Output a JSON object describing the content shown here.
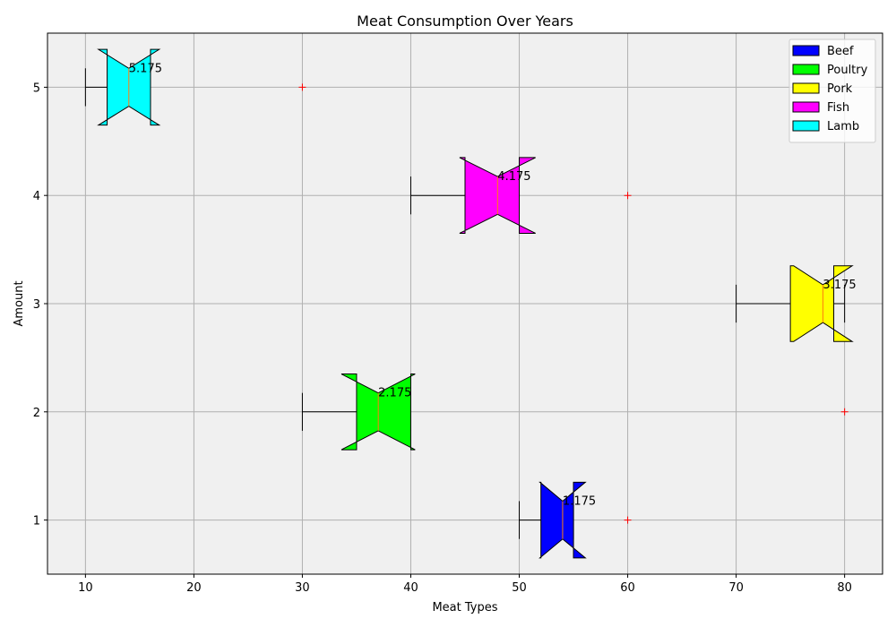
{
  "chart_data": {
    "type": "boxplot",
    "orientation": "horizontal",
    "notched": true,
    "title": "Meat Consumption Over Years",
    "x_label": "Meat Types",
    "y_label": "Amount",
    "xlim": [
      6.5,
      83.5
    ],
    "xticks": [
      10,
      20,
      30,
      40,
      50,
      60,
      70,
      80
    ],
    "ylim": [
      0.5,
      5.5
    ],
    "yticks": [
      1,
      2,
      3,
      4,
      5
    ],
    "grid": true,
    "legend_position": "upper right",
    "background": "#f0f0f0",
    "box_half_height": 0.35,
    "flier_color": "#ff0000",
    "median_color": "#ff7f0e",
    "series": [
      {
        "name": "Beef",
        "color": "#0000ff",
        "position": 1,
        "whislo": 50,
        "q1": 52,
        "median": 54,
        "q3": 55,
        "whishi": 55,
        "notch_low": 51.9,
        "notch_high": 56.1,
        "fliers": [
          60
        ],
        "annotation": "1.175"
      },
      {
        "name": "Poultry",
        "color": "#00ff00",
        "position": 2,
        "whislo": 30,
        "q1": 35,
        "median": 37,
        "q3": 40,
        "whishi": 40,
        "notch_low": 33.6,
        "notch_high": 40.4,
        "fliers": [
          80
        ],
        "annotation": "2.175"
      },
      {
        "name": "Pork",
        "color": "#ffff00",
        "position": 3,
        "whislo": 70,
        "q1": 75,
        "median": 78,
        "q3": 79,
        "whishi": 80,
        "notch_low": 75.3,
        "notch_high": 80.7,
        "fliers": [],
        "annotation": "3.175"
      },
      {
        "name": "Fish",
        "color": "#ff00ff",
        "position": 4,
        "whislo": 40,
        "q1": 45,
        "median": 48,
        "q3": 50,
        "whishi": 50,
        "notch_low": 44.5,
        "notch_high": 51.5,
        "fliers": [
          60
        ],
        "annotation": "4.175"
      },
      {
        "name": "Lamb",
        "color": "#00ffff",
        "position": 5,
        "whislo": 10,
        "q1": 12,
        "median": 14,
        "q3": 16,
        "whishi": 16,
        "notch_low": 11.2,
        "notch_high": 16.8,
        "fliers": [
          30
        ],
        "annotation": "5.175"
      }
    ]
  }
}
